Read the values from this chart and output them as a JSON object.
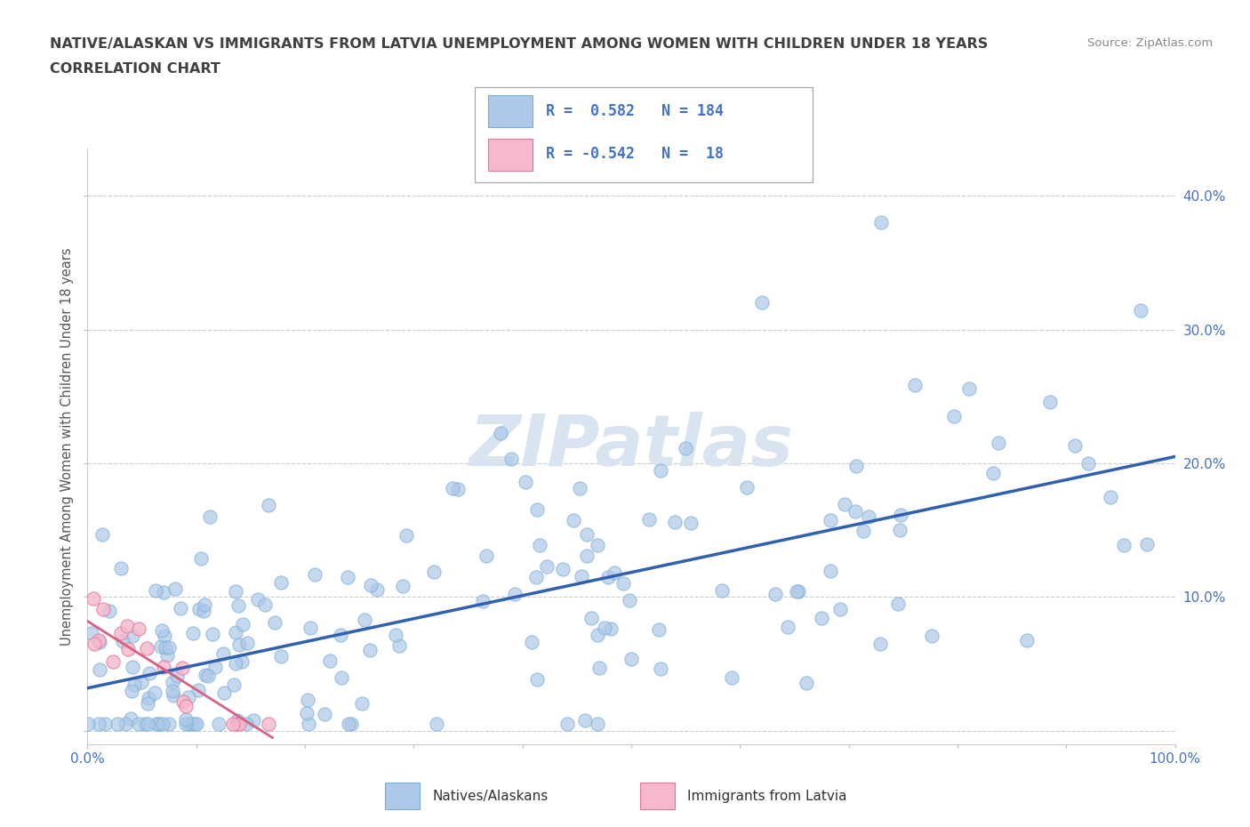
{
  "title_line1": "NATIVE/ALASKAN VS IMMIGRANTS FROM LATVIA UNEMPLOYMENT AMONG WOMEN WITH CHILDREN UNDER 18 YEARS",
  "title_line2": "CORRELATION CHART",
  "source_text": "Source: ZipAtlas.com",
  "ylabel": "Unemployment Among Women with Children Under 18 years",
  "xlim": [
    0.0,
    1.0
  ],
  "ylim": [
    -0.01,
    0.435
  ],
  "xticks": [
    0.0,
    0.1,
    0.2,
    0.3,
    0.4,
    0.5,
    0.6,
    0.7,
    0.8,
    0.9,
    1.0
  ],
  "xticklabels": [
    "0.0%",
    "",
    "",
    "",
    "",
    "",
    "",
    "",
    "",
    "",
    "100.0%"
  ],
  "yticks": [
    0.0,
    0.1,
    0.2,
    0.3,
    0.4
  ],
  "yticklabels": [
    "",
    "10.0%",
    "20.0%",
    "30.0%",
    "40.0%"
  ],
  "grid_color": "#cccccc",
  "background_color": "#ffffff",
  "watermark_text": "ZIPatlas",
  "watermark_color": "#d8e4f0",
  "native_color": "#adc8e8",
  "native_edge_color": "#7ab0d8",
  "immigrant_color": "#f5b8cc",
  "immigrant_edge_color": "#e07898",
  "native_R": 0.582,
  "native_N": 184,
  "immigrant_R": -0.542,
  "immigrant_N": 18,
  "legend_R_color": "#4472c4",
  "native_line_color": "#3060b0",
  "immigrant_line_color": "#d86080",
  "title_color": "#404040",
  "tick_label_color": "#4472c4",
  "native_line_x0": 0.0,
  "native_line_y0": 0.032,
  "native_line_x1": 1.0,
  "native_line_y1": 0.205,
  "imm_line_x0": 0.0,
  "imm_line_y0": 0.082,
  "imm_line_x1": 0.17,
  "imm_line_y1": -0.005
}
